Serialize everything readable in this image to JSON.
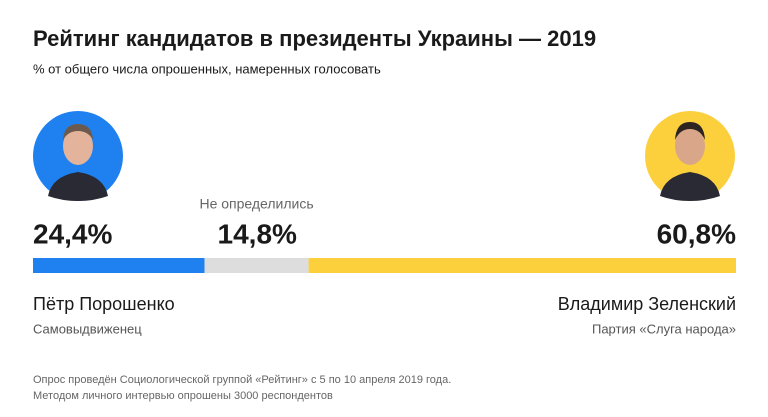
{
  "chart_data": {
    "type": "stacked_bar",
    "title": "Рейтинг кандидатов в президенты Украины — 2019",
    "subtitle": "% от общего числа опрошенных, намеренных голосовать",
    "xlim": [
      0,
      100
    ],
    "series": [
      {
        "name": "Пётр Порошенко",
        "party": "Самовыдвиженец",
        "color": "#1f80f0",
        "values": [
          24.4
        ],
        "value_labels": [
          "24,4%"
        ]
      },
      {
        "name": "Не определились",
        "color": "#dddddd",
        "values": [
          14.8
        ],
        "value_labels": [
          "14,8%"
        ]
      },
      {
        "name": "Владимир Зеленский",
        "party": "Партия «Слуга народа»",
        "color": "#fcd03c",
        "values": [
          60.8
        ],
        "value_labels": [
          "60,8%"
        ]
      }
    ],
    "notes": [
      "Опрос проведён Социологической группой «Рейтинг» с 5 по 10 апреля 2019 года.",
      "Методом личного интервью опрошены 3000 респондентов"
    ]
  }
}
